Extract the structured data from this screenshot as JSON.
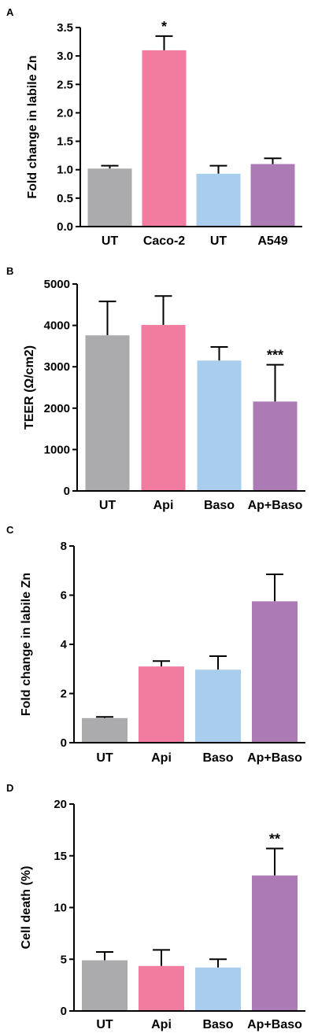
{
  "colors": {
    "gray": "#ABABAE",
    "pink": "#F17CA0",
    "blue": "#A9CDEC",
    "purple": "#AC7BB6"
  },
  "panels": [
    {
      "letter": "A",
      "chart_data": {
        "type": "bar",
        "categories": [
          "UT",
          "Caco-2",
          "UT",
          "A549"
        ],
        "values": [
          1.02,
          3.1,
          0.93,
          1.1
        ],
        "errors": [
          0.05,
          0.25,
          0.14,
          0.1
        ],
        "bar_colors": [
          "gray",
          "pink",
          "blue",
          "purple"
        ],
        "annotations": [
          "",
          "*",
          "",
          ""
        ],
        "ylabel": "Fold change in labile Zn",
        "ylim": [
          0,
          3.5
        ],
        "yticks": [
          0,
          0.5,
          1.0,
          1.5,
          2.0,
          2.5,
          3.0,
          3.5
        ],
        "ytick_labels": [
          "0.0",
          "0.5",
          "1.0",
          "1.5",
          "2.0",
          "2.5",
          "3.0",
          "3.5"
        ]
      }
    },
    {
      "letter": "B",
      "chart_data": {
        "type": "bar",
        "categories": [
          "UT",
          "Api",
          "Baso",
          "Ap+Baso"
        ],
        "values": [
          3760,
          4010,
          3150,
          2160
        ],
        "errors": [
          820,
          700,
          330,
          890
        ],
        "bar_colors": [
          "gray",
          "pink",
          "blue",
          "purple"
        ],
        "annotations": [
          "",
          "",
          "",
          "***"
        ],
        "ylabel": "TEER (Ω/cm2)",
        "ylim": [
          0,
          5000
        ],
        "yticks": [
          0,
          1000,
          2000,
          3000,
          4000,
          5000
        ],
        "ytick_labels": [
          "0",
          "1000",
          "2000",
          "3000",
          "4000",
          "5000"
        ]
      }
    },
    {
      "letter": "C",
      "chart_data": {
        "type": "bar",
        "categories": [
          "UT",
          "Api",
          "Baso",
          "Ap+Baso"
        ],
        "values": [
          1.0,
          3.1,
          2.97,
          5.75
        ],
        "errors": [
          0.05,
          0.22,
          0.55,
          1.1
        ],
        "bar_colors": [
          "gray",
          "pink",
          "blue",
          "purple"
        ],
        "annotations": [
          "",
          "",
          "",
          ""
        ],
        "ylabel": "Fold change in labile Zn",
        "ylim": [
          0,
          8
        ],
        "yticks": [
          0,
          2,
          4,
          6,
          8
        ],
        "ytick_labels": [
          "0",
          "2",
          "4",
          "6",
          "8"
        ]
      }
    },
    {
      "letter": "D",
      "chart_data": {
        "type": "bar",
        "categories": [
          "UT",
          "Api",
          "Baso",
          "Ap+Baso"
        ],
        "values": [
          4.9,
          4.35,
          4.2,
          13.1
        ],
        "errors": [
          0.8,
          1.55,
          0.8,
          2.6
        ],
        "bar_colors": [
          "gray",
          "pink",
          "blue",
          "purple"
        ],
        "annotations": [
          "",
          "",
          "",
          "**"
        ],
        "ylabel": "Cell death (%)",
        "ylim": [
          0,
          20
        ],
        "yticks": [
          0,
          5,
          10,
          15,
          20
        ],
        "ytick_labels": [
          "0",
          "5",
          "10",
          "15",
          "20"
        ]
      }
    }
  ]
}
